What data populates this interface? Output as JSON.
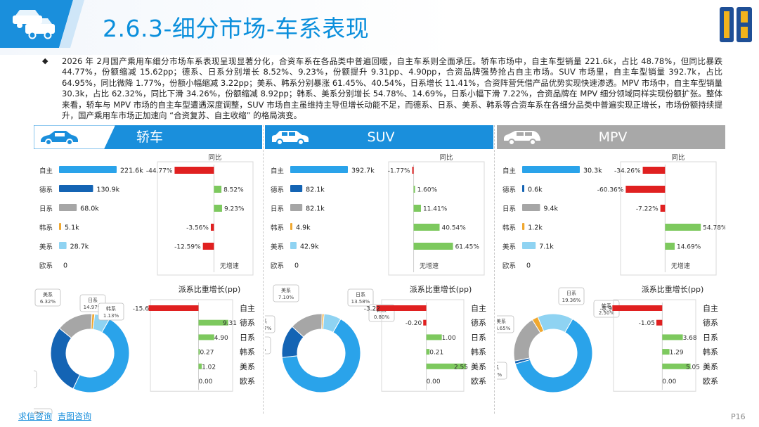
{
  "header": {
    "title": "2.6.3-细分市场-车系表现"
  },
  "summary": "2026 年 2月国产乘用车细分市场车系表现呈现显著分化，合资车系在各品类中普遍回暖，自主车系则全面承压。轿车市场中，自主车型销量 221.6k，占比 48.78%，但同比暴跌 44.77%，份额缩减 15.62pp；德系、日系分别增长 8.52%、9.23%，份额提升 9.31pp、4.90pp，合资品牌强势抢占自主市场。SUV 市场里，自主车型销量 392.7k，占比 64.95%，同比微降 1.77%，份额小幅缩减 3.22pp；美系、韩系分别暴涨 61.45%、40.54%，日系增长 11.41%，合资阵营凭借产品优势实现快速渗透。MPV 市场中，自主车型销量 30.3k，占比 62.32%，同比下滑 34.26%，份额缩减 8.92pp；韩系、美系分别增长 54.78%、14.69%，日系小幅下滑 7.22%，合资品牌在 MPV 细分领域同样实现份额扩张。整体来看，轿车与 MPV 市场的自主车型遭遇深度调整，SUV 市场自主虽维持主导但增长动能不足，而德系、日系、美系、韩系等合资车系在各细分品类中普遍实现正增长，市场份额持续提升，国产乘用车市场正加速向 “合资复苏、自主收缩” 的格局演变。",
  "labels": {
    "yoy_header": "同比",
    "share_title": "派系比重增长(pp)",
    "no_growth": "无增速"
  },
  "colors": {
    "blue": "#1a8fdc",
    "grey": "#a8a8a8",
    "red": "#e02020",
    "green": "#7dc95e",
    "zizhu": "#2aa3ea",
    "dexi": "#1464b4",
    "rixi": "#a6a6a6",
    "hanxi": "#f0a830",
    "meixi": "#8fd3f2",
    "ouxi": "#5a7fc0"
  },
  "footer": {
    "link1": "求信咨询",
    "link2": "吉图咨询",
    "page": "P16"
  },
  "chart_data": [
    {
      "type": "bar",
      "panel": "轿车",
      "categories": [
        "自主",
        "德系",
        "日系",
        "韩系",
        "美系",
        "欧系"
      ],
      "sales": [
        221.6,
        130.9,
        68.0,
        5.1,
        28.7,
        0
      ],
      "sales_labels": [
        "221.6k",
        "130.9k",
        "68.0k",
        "5.1k",
        "28.7k",
        "0"
      ],
      "yoy": [
        -44.77,
        8.52,
        9.23,
        -3.56,
        -12.59,
        null
      ],
      "yoy_labels": [
        "-44.77%",
        "8.52%",
        "9.23%",
        "-3.56%",
        "-12.59%",
        "无增速"
      ],
      "share": [
        48.78,
        28.81,
        14.97,
        1.13,
        6.32,
        0.0
      ],
      "share_labels": [
        "48.78%",
        "28.81%",
        "14.97%",
        "1.13%",
        "6.32%",
        "0.00%"
      ],
      "pp": [
        -15.62,
        9.31,
        4.9,
        0.27,
        1.02,
        0.0
      ],
      "pp_labels": [
        "-15.6",
        "9.31",
        "4.90",
        "0.27",
        "1.02",
        "0.00"
      ]
    },
    {
      "type": "bar",
      "panel": "SUV",
      "categories": [
        "自主",
        "德系",
        "日系",
        "韩系",
        "美系",
        "欧系"
      ],
      "sales": [
        392.7,
        82.1,
        82.1,
        4.9,
        42.9,
        0
      ],
      "sales_labels": [
        "392.7k",
        "82.1k",
        "82.1k",
        "4.9k",
        "42.9k",
        "0"
      ],
      "yoy": [
        -1.77,
        1.6,
        11.41,
        40.54,
        61.45,
        null
      ],
      "yoy_labels": [
        "-1.77%",
        "1.60%",
        "11.41%",
        "40.54%",
        "61.45%",
        "无增速"
      ],
      "share": [
        64.95,
        13.57,
        13.58,
        0.8,
        7.1,
        0.0
      ],
      "share_labels": [
        "64.95%",
        "13.57%",
        "13.58%",
        "0.80%",
        "7.10%",
        "0.00%"
      ],
      "pp": [
        -3.22,
        -0.2,
        1.0,
        0.21,
        2.55,
        0.0
      ],
      "pp_labels": [
        "-3.22",
        "-0.20",
        "1.00",
        "0.21",
        "2.55",
        "0.00"
      ]
    },
    {
      "type": "bar",
      "panel": "MPV",
      "categories": [
        "自主",
        "德系",
        "日系",
        "韩系",
        "美系",
        "欧系"
      ],
      "sales": [
        30.3,
        0.6,
        9.4,
        1.2,
        7.1,
        0
      ],
      "sales_labels": [
        "30.3k",
        "0.6k",
        "9.4k",
        "1.2k",
        "7.1k",
        "0"
      ],
      "yoy": [
        -34.26,
        -60.36,
        -7.22,
        54.78,
        14.69,
        null
      ],
      "yoy_labels": [
        "-34.26%",
        "-60.36%",
        "-7.22%",
        "54.78%",
        "14.69%",
        "无增速"
      ],
      "share": [
        62.32,
        1.17,
        19.36,
        2.5,
        14.65,
        0.0
      ],
      "share_labels": [
        "62.32%",
        "1.17%",
        "19.36%",
        "2.50%",
        "14.65%",
        ""
      ],
      "pp": [
        -8.92,
        -1.05,
        3.68,
        1.29,
        5.05,
        0.0
      ],
      "pp_labels": [
        "-8.9",
        "-1.05",
        "3.68",
        "1.29",
        "5.05",
        "0.00"
      ]
    }
  ]
}
